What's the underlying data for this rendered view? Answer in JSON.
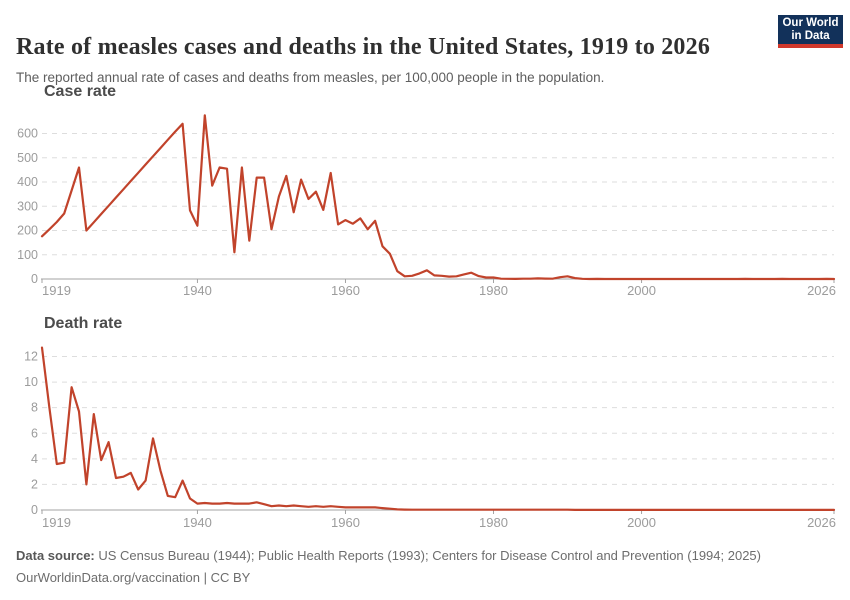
{
  "header": {
    "title": "Rate of measles cases and deaths in the United States, 1919 to 2026",
    "subtitle": "The reported annual rate of cases and deaths from measles, per 100,000 people in the population.",
    "logo": {
      "line1": "Our World",
      "line2": "in Data"
    }
  },
  "footer": {
    "source_label": "Data source:",
    "source_text": " US Census Bureau (1944); Public Health Reports (1993); Centers for Disease Control and Prevention (1994; 2025)",
    "link": "OurWorldinData.org/vaccination",
    "license": " | CC BY"
  },
  "colors": {
    "line": "#c1432b",
    "grid": "#dddddd",
    "axis": "#a3a3a3",
    "tick_label": "#9c9c9c",
    "logo_navy": "#12315a",
    "logo_red": "#d0382c"
  },
  "chart_data": [
    {
      "type": "line",
      "title": "Case rate",
      "xlabel": "",
      "ylabel": "",
      "x_range": [
        1919,
        2026
      ],
      "ylim": [
        0,
        690
      ],
      "x_ticks": [
        1919,
        1940,
        1960,
        1980,
        2000,
        2026
      ],
      "y_ticks": [
        0,
        100,
        200,
        300,
        400,
        500,
        600
      ],
      "grid": "horizontal-dashed",
      "legend": "none",
      "series": [
        {
          "name": "Case rate",
          "x_start": 1919,
          "values": [
            176,
            205,
            235,
            270,
            365,
            460,
            200,
            234,
            268,
            302,
            336,
            370,
            404,
            438,
            472,
            506,
            540,
            574,
            608,
            640,
            283,
            220,
            675,
            385,
            460,
            455,
            110,
            460,
            158,
            418,
            418,
            205,
            340,
            425,
            275,
            410,
            330,
            360,
            285,
            437,
            225,
            243,
            228,
            250,
            205,
            240,
            135,
            104,
            32,
            11,
            13,
            23,
            36,
            15,
            13,
            10,
            11,
            19,
            26,
            12,
            6,
            6,
            1.4,
            0.7,
            0.6,
            1.1,
            1.2,
            2.6,
            1.5,
            1.4,
            7.4,
            11.1,
            3.8,
            0.9,
            0.1,
            0.4,
            0.1,
            0.2,
            0.1,
            0.05,
            0.04,
            0.03,
            0.04,
            0.02,
            0.02,
            0.01,
            0.02,
            0.02,
            0.01,
            0.05,
            0.02,
            0.02,
            0.07,
            0.02,
            0.06,
            0.21,
            0.06,
            0.03,
            0.04,
            0.12,
            0.38,
            0.04,
            0.02,
            0.04,
            0.02,
            0.08,
            0.38,
            0.1
          ]
        }
      ]
    },
    {
      "type": "line",
      "title": "Death rate",
      "xlabel": "",
      "ylabel": "",
      "x_range": [
        1919,
        2026
      ],
      "ylim": [
        0,
        13
      ],
      "x_ticks": [
        1919,
        1940,
        1960,
        1980,
        2000,
        2026
      ],
      "y_ticks": [
        0,
        2,
        4,
        6,
        8,
        10,
        12
      ],
      "grid": "horizontal-dashed",
      "legend": "none",
      "series": [
        {
          "name": "Death rate",
          "x_start": 1919,
          "values": [
            12.7,
            8.0,
            3.6,
            3.7,
            9.6,
            7.7,
            2.0,
            7.5,
            3.9,
            5.3,
            2.5,
            2.6,
            2.9,
            1.6,
            2.3,
            5.6,
            3.1,
            1.1,
            1.0,
            2.3,
            0.9,
            0.5,
            0.55,
            0.5,
            0.5,
            0.55,
            0.5,
            0.5,
            0.5,
            0.6,
            0.45,
            0.3,
            0.35,
            0.3,
            0.35,
            0.3,
            0.25,
            0.3,
            0.25,
            0.3,
            0.25,
            0.2,
            0.2,
            0.2,
            0.2,
            0.2,
            0.15,
            0.1,
            0.05,
            0.03,
            0.02,
            0.02,
            0.02,
            0.02,
            0.02,
            0.02,
            0.02,
            0.02,
            0.02,
            0.02,
            0.02,
            0.02,
            0.02,
            0.02,
            0.02,
            0.02,
            0.02,
            0.02,
            0.02,
            0.02,
            0.02,
            0.02,
            0.01,
            0.01,
            0.01,
            0.01,
            0.01,
            0.01,
            0.01,
            0.01,
            0.01,
            0.01,
            0.01,
            0.01,
            0.01,
            0.01,
            0.01,
            0.01,
            0.01,
            0.01,
            0.01,
            0.01,
            0.01,
            0.01,
            0.01,
            0.01,
            0.01,
            0.01,
            0.01,
            0.01,
            0.01,
            0.01,
            0.01,
            0.01,
            0.01,
            0.01,
            0.01,
            0.01
          ]
        }
      ]
    }
  ]
}
